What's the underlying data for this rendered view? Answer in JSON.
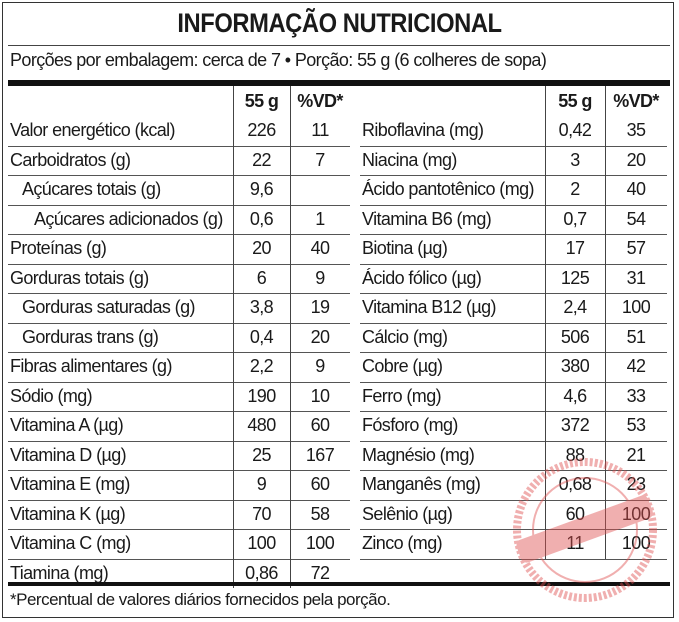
{
  "title": "INFORMAÇÃO NUTRICIONAL",
  "serving_info": "Porções por embalagem: cerca de 7 • Porção: 55 g (6 colheres de sopa)",
  "columns": {
    "amount": "55 g",
    "dv": "%VD*"
  },
  "left_rows": [
    {
      "label": "Valor energético (kcal)",
      "amount": "226",
      "dv": "11",
      "indent": 0
    },
    {
      "label": "Carboidratos (g)",
      "amount": "22",
      "dv": "7",
      "indent": 0
    },
    {
      "label": "Açúcares totais (g)",
      "amount": "9,6",
      "dv": "",
      "indent": 1
    },
    {
      "label": "Açúcares adicionados (g)",
      "amount": "0,6",
      "dv": "1",
      "indent": 2
    },
    {
      "label": "Proteínas (g)",
      "amount": "20",
      "dv": "40",
      "indent": 0
    },
    {
      "label": "Gorduras totais (g)",
      "amount": "6",
      "dv": "9",
      "indent": 0
    },
    {
      "label": "Gorduras saturadas (g)",
      "amount": "3,8",
      "dv": "19",
      "indent": 1
    },
    {
      "label": "Gorduras trans (g)",
      "amount": "0,4",
      "dv": "20",
      "indent": 1
    },
    {
      "label": "Fibras alimentares (g)",
      "amount": "2,2",
      "dv": "9",
      "indent": 0
    },
    {
      "label": "Sódio (mg)",
      "amount": "190",
      "dv": "10",
      "indent": 0
    },
    {
      "label": "Vitamina A (µg)",
      "amount": "480",
      "dv": "60",
      "indent": 0
    },
    {
      "label": "Vitamina D (µg)",
      "amount": "25",
      "dv": "167",
      "indent": 0
    },
    {
      "label": "Vitamina E (mg)",
      "amount": "9",
      "dv": "60",
      "indent": 0
    },
    {
      "label": "Vitamina K (µg)",
      "amount": "70",
      "dv": "58",
      "indent": 0
    },
    {
      "label": "Vitamina C (mg)",
      "amount": "100",
      "dv": "100",
      "indent": 0
    },
    {
      "label": "Tiamina (mg)",
      "amount": "0,86",
      "dv": "72",
      "indent": 0
    }
  ],
  "right_rows": [
    {
      "label": "Riboflavina (mg)",
      "amount": "0,42",
      "dv": "35"
    },
    {
      "label": "Niacina (mg)",
      "amount": "3",
      "dv": "20"
    },
    {
      "label": "Ácido pantotênico (mg)",
      "amount": "2",
      "dv": "40"
    },
    {
      "label": "Vitamina B6 (mg)",
      "amount": "0,7",
      "dv": "54"
    },
    {
      "label": "Biotina (µg)",
      "amount": "17",
      "dv": "57"
    },
    {
      "label": "Ácido fólico (µg)",
      "amount": "125",
      "dv": "31"
    },
    {
      "label": "Vitamina B12 (µg)",
      "amount": "2,4",
      "dv": "100"
    },
    {
      "label": "Cálcio (mg)",
      "amount": "506",
      "dv": "51"
    },
    {
      "label": "Cobre (µg)",
      "amount": "380",
      "dv": "42"
    },
    {
      "label": "Ferro (mg)",
      "amount": "4,6",
      "dv": "33"
    },
    {
      "label": "Fósforo (mg)",
      "amount": "372",
      "dv": "53"
    },
    {
      "label": "Magnésio (mg)",
      "amount": "88",
      "dv": "21"
    },
    {
      "label": "Manganês (mg)",
      "amount": "0,68",
      "dv": "23"
    },
    {
      "label": "Selênio (µg)",
      "amount": "60",
      "dv": "100"
    },
    {
      "label": "Zinco (mg)",
      "amount": "11",
      "dv": "100"
    }
  ],
  "footnote": "*Percentual de valores diários fornecidos pela porção.",
  "watermark": {
    "text": "PROTECTED IMAGE",
    "color": "#e05050"
  }
}
